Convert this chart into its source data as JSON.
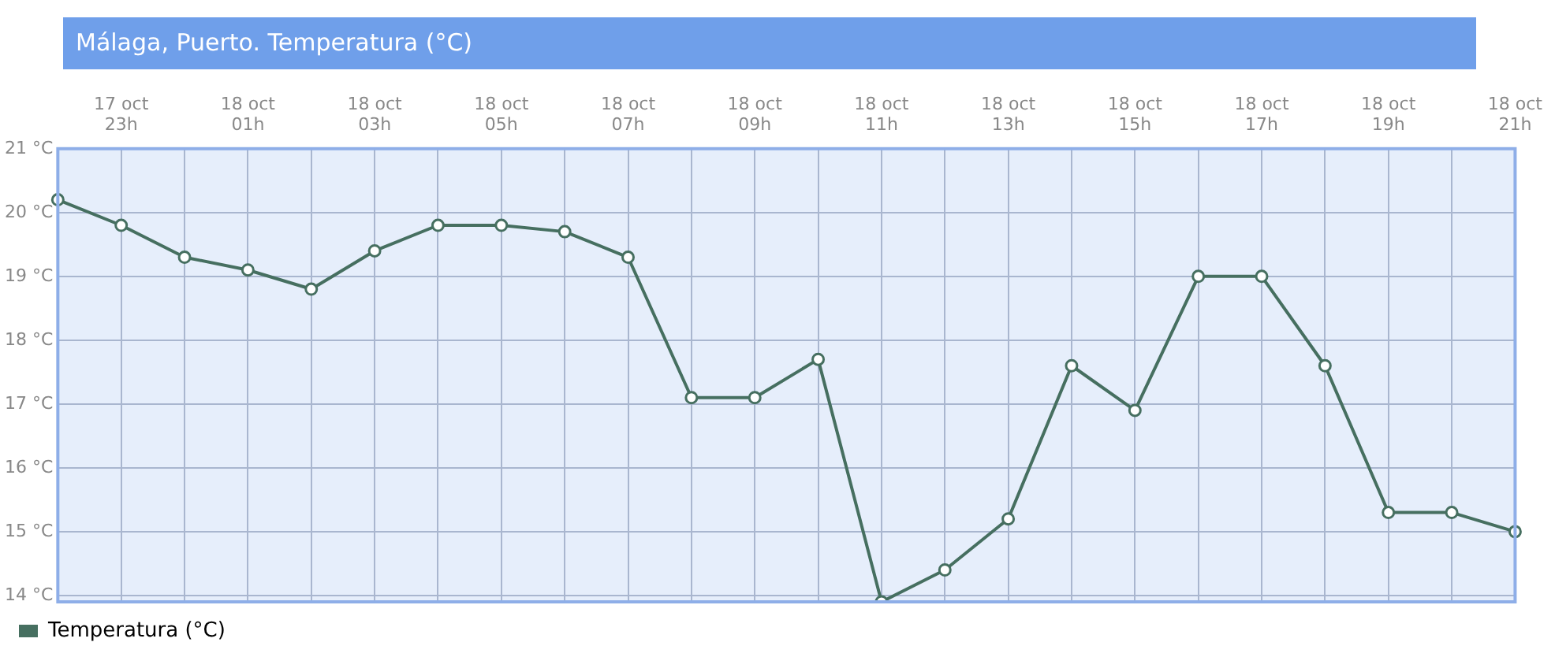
{
  "chart_data": {
    "type": "line",
    "title": "Málaga, Puerto. Temperatura (°C)",
    "categories": [
      null,
      "17 oct 23h",
      null,
      "18 oct 01h",
      null,
      "18 oct 03h",
      null,
      "18 oct 05h",
      null,
      "18 oct 07h",
      null,
      "18 oct 09h",
      null,
      "18 oct 11h",
      null,
      "18 oct 13h",
      null,
      "18 oct 15h",
      null,
      "18 oct 17h",
      null,
      "18 oct 19h",
      null,
      "18 oct 21h"
    ],
    "series": [
      {
        "name": "Temperatura (°C)",
        "color": "#466f60",
        "values": [
          20.2,
          19.8,
          19.3,
          19.1,
          18.8,
          19.4,
          19.8,
          19.8,
          19.7,
          19.3,
          17.1,
          17.1,
          17.7,
          13.9,
          14.4,
          15.2,
          17.6,
          16.9,
          19.0,
          19.0,
          17.6,
          15.3,
          15.3,
          15.0
        ]
      }
    ],
    "ylim": [
      13.9,
      21
    ],
    "yticks": [
      {
        "value": 14,
        "label": "14 °C"
      },
      {
        "value": 15,
        "label": "15 °C"
      },
      {
        "value": 16,
        "label": "16 °C"
      },
      {
        "value": 17,
        "label": "17 °C"
      },
      {
        "value": 18,
        "label": "18 °C"
      },
      {
        "value": 19,
        "label": "19 °C"
      },
      {
        "value": 20,
        "label": "20 °C"
      },
      {
        "value": 21,
        "label": "21 °C"
      }
    ],
    "grid": true,
    "legend": "bottom left",
    "marker": "circle",
    "line_style": "solid"
  }
}
